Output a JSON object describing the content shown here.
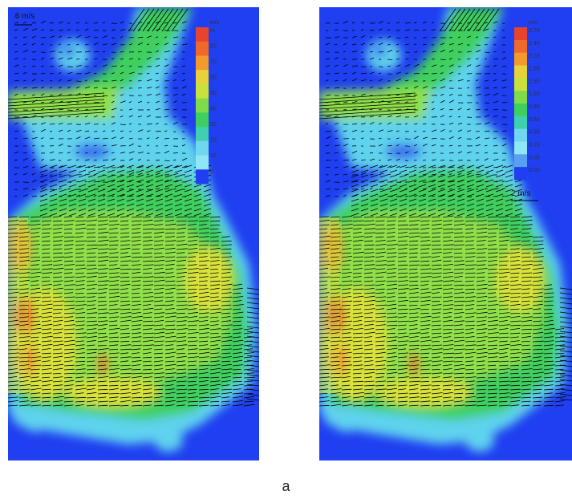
{
  "colors": {
    "background": "#1f3ff0",
    "cyan": "#5fd2ee",
    "lightcyan": "#8fe6f4",
    "green": "#3fcf5f",
    "lightgreen": "#8fe04a",
    "yellow": "#d8e23a",
    "orange": "#f09a30",
    "red": "#e8462a",
    "arrow": "#000000"
  },
  "panels": [
    {
      "id": "left",
      "unit_label": "m/s",
      "scale_text": ".6 m/s",
      "scale_position": "top-left",
      "colorbar": {
        "labels": [
          "m",
          "20",
          "70",
          "50",
          "30",
          "40",
          "30",
          "10",
          "15",
          "0"
        ],
        "colors": [
          "#e8432c",
          "#ef6a2a",
          "#f39a2c",
          "#e6d23a",
          "#c9e13c",
          "#7fdc48",
          "#3fcf5f",
          "#3fd0b0",
          "#6fd8f0",
          "#8fe6f4",
          "#1f3ff0"
        ]
      }
    },
    {
      "id": "right",
      "unit_label": "m/s",
      "scale_text": "2 m/s",
      "scale_position": "right-below-colorbar",
      "colorbar": {
        "labels": [
          "2.70",
          "2.40",
          "2.10",
          "1.80",
          "1.50",
          "1.20",
          "0.90",
          "0.60",
          "0.30",
          "0.15",
          "0.05",
          "0.00"
        ],
        "colors": [
          "#e8432c",
          "#ef6a2a",
          "#f39a2c",
          "#e6d23a",
          "#c9e13c",
          "#7fdc48",
          "#3fcf5f",
          "#3fd0b0",
          "#6fd8f0",
          "#8fe6f4",
          "#5aa0f0",
          "#1f3ff0"
        ]
      }
    }
  ],
  "caption": "a"
}
